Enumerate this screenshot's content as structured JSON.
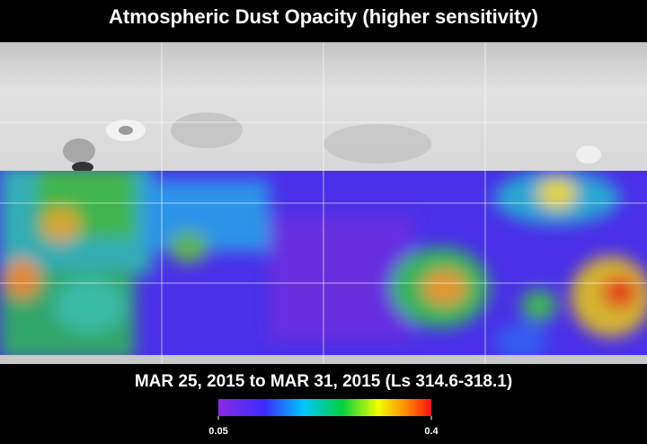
{
  "header": {
    "title": "Atmospheric Dust Opacity (higher sensitivity)"
  },
  "map": {
    "date_range": "MAR 25, 2015 to MAR 31, 2015 (Ls 314.6-318.1)"
  },
  "colorbar": {
    "range": [
      0.05,
      0.4
    ],
    "ticks": [
      0.05,
      0.4
    ]
  }
}
